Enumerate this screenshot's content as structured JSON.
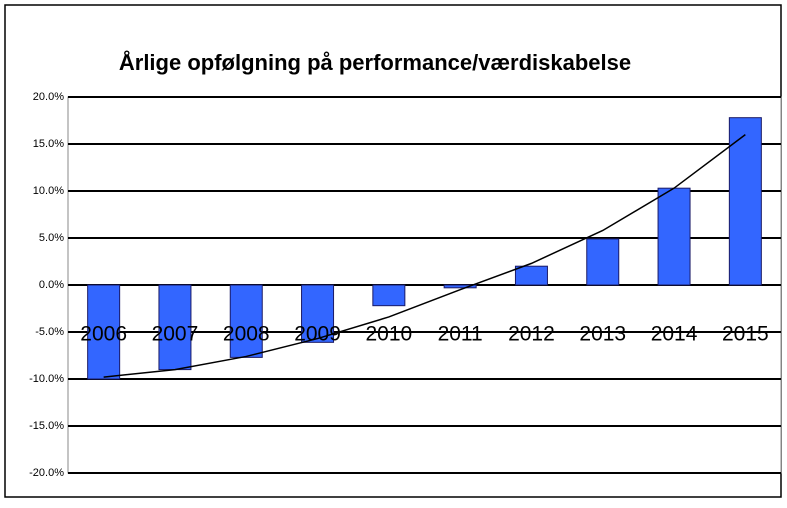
{
  "chart_data": {
    "type": "bar",
    "title": "Årlige opfølgning på performance/værdiskabelse",
    "categories": [
      "2006",
      "2007",
      "2008",
      "2009",
      "2010",
      "2011",
      "2012",
      "2013",
      "2014",
      "2015"
    ],
    "values": [
      -10.0,
      -9.0,
      -7.7,
      -6.1,
      -2.2,
      -0.3,
      2.0,
      4.9,
      10.3,
      17.8
    ],
    "color": "#3366ff",
    "trendline": {
      "values": [
        -9.8,
        -9.0,
        -7.6,
        -5.7,
        -3.4,
        -0.5,
        2.3,
        5.8,
        10.3,
        16.0
      ],
      "color": "#000000"
    },
    "ylim": [
      -20,
      20
    ],
    "yticks": [
      {
        "value": -20,
        "label": "-20.0%"
      },
      {
        "value": -15,
        "label": "-15.0%"
      },
      {
        "value": -10,
        "label": "-10.0%"
      },
      {
        "value": -5,
        "label": "-5.0%"
      },
      {
        "value": 0,
        "label": "0.0%"
      },
      {
        "value": 5,
        "label": "5.0%"
      },
      {
        "value": 10,
        "label": "10.0%"
      },
      {
        "value": 15,
        "label": "15.0%"
      },
      {
        "value": 20,
        "label": "20.0%"
      }
    ],
    "grid": true
  }
}
